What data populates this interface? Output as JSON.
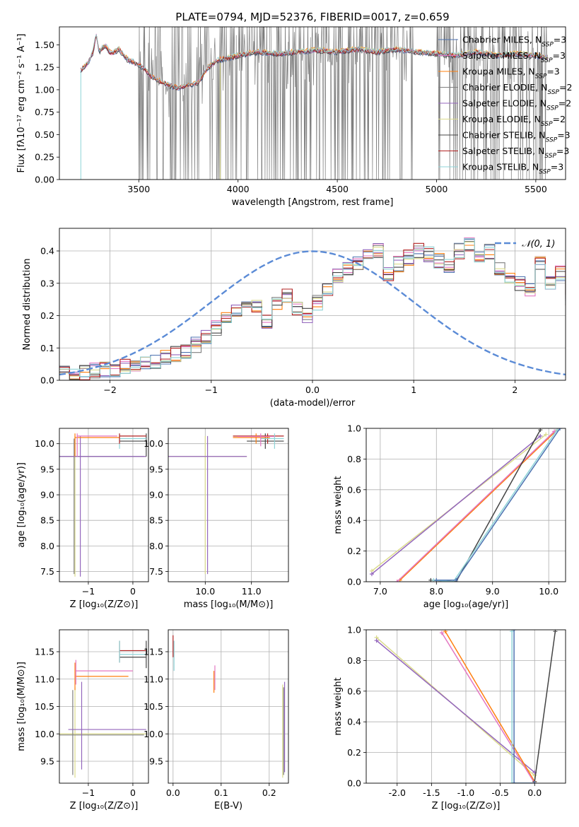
{
  "colors": {
    "chabrier_miles": "#4c72b0",
    "salpeter_miles": "#e377c2",
    "kroupa_miles": "#ff7f0e",
    "chabrier_elodie": "#7f7f7f",
    "salpeter_elodie": "#9467bd",
    "kroupa_elodie": "#dbdb8d",
    "chabrier_stelib": "#444444",
    "salpeter_stelib": "#b22222",
    "kroupa_stelib": "#8fd4d8",
    "normal": "#5b8bd6",
    "grid": "#b0b0b0"
  },
  "chart_data": [
    {
      "id": "spectrum",
      "type": "line",
      "title": "PLATE=0794, MJD=52376, FIBERID=0017, z=0.659",
      "xlabel": "wavelength [Angstrom, rest frame]",
      "ylabel": "Flux [fλ10⁻¹⁷ erg cm⁻² s⁻¹ A⁻¹]",
      "xlim": [
        3100,
        5650
      ],
      "ylim": [
        0,
        1.7
      ],
      "xticks": [
        3500,
        4000,
        4500,
        5000,
        5500
      ],
      "yticks": [
        0.0,
        0.25,
        0.5,
        0.75,
        1.0,
        1.25,
        1.5
      ],
      "grid": false,
      "legend_position": "top-right",
      "legend": [
        {
          "pre": "Chabrier MILES, N",
          "sub": "SSP",
          "post": "=3",
          "color": "#4c72b0"
        },
        {
          "pre": "Salpeter MILES, N",
          "sub": "SSP",
          "post": "=3",
          "color": "#e377c2"
        },
        {
          "pre": "Kroupa MILES, N",
          "sub": "SSP",
          "post": "=3",
          "color": "#ff7f0e"
        },
        {
          "pre": "Chabrier ELODIE, N",
          "sub": "SSP",
          "post": "=2",
          "color": "#7f7f7f"
        },
        {
          "pre": "Salpeter ELODIE, N",
          "sub": "SSP",
          "post": "=2",
          "color": "#9467bd"
        },
        {
          "pre": "Kroupa ELODIE, N",
          "sub": "SSP",
          "post": "=2",
          "color": "#dbdb8d"
        },
        {
          "pre": "Chabrier STELIB, N",
          "sub": "SSP",
          "post": "=3",
          "color": "#444444"
        },
        {
          "pre": "Salpeter STELIB, N",
          "sub": "SSP",
          "post": "=3",
          "color": "#b22222"
        },
        {
          "pre": "Kroupa STELIB, N",
          "sub": "SSP",
          "post": "=3",
          "color": "#8fd4d8"
        }
      ],
      "continuum": [
        [
          3210,
          1.22
        ],
        [
          3240,
          1.28
        ],
        [
          3270,
          1.42
        ],
        [
          3285,
          1.62
        ],
        [
          3300,
          1.42
        ],
        [
          3330,
          1.5
        ],
        [
          3360,
          1.4
        ],
        [
          3400,
          1.45
        ],
        [
          3440,
          1.34
        ],
        [
          3480,
          1.3
        ],
        [
          3520,
          1.25
        ],
        [
          3560,
          1.15
        ],
        [
          3600,
          1.1
        ],
        [
          3650,
          1.05
        ],
        [
          3700,
          1.02
        ],
        [
          3750,
          1.05
        ],
        [
          3800,
          1.08
        ],
        [
          3850,
          1.25
        ],
        [
          3900,
          1.33
        ],
        [
          4000,
          1.38
        ],
        [
          4100,
          1.42
        ],
        [
          4200,
          1.4
        ],
        [
          4300,
          1.42
        ],
        [
          4400,
          1.44
        ],
        [
          4500,
          1.42
        ],
        [
          4600,
          1.45
        ],
        [
          4700,
          1.42
        ],
        [
          4800,
          1.45
        ],
        [
          4900,
          1.42
        ],
        [
          5000,
          1.4
        ],
        [
          5100,
          1.38
        ],
        [
          5200,
          1.42
        ],
        [
          5300,
          1.38
        ],
        [
          5400,
          1.4
        ],
        [
          5500,
          1.38
        ],
        [
          5550,
          1.36
        ]
      ],
      "noise_range": [
        3500,
        4880
      ],
      "noise_regions": [
        [
          3500,
          4880
        ],
        [
          5000,
          5560
        ]
      ]
    },
    {
      "id": "residuals",
      "type": "line",
      "title": "",
      "xlabel": "(data-model)/error",
      "ylabel": "Normed distribution",
      "xlim": [
        -2.5,
        2.5
      ],
      "ylim": [
        0,
        0.47
      ],
      "xticks": [
        -2,
        -1,
        0,
        1,
        2
      ],
      "yticks": [
        0.0,
        0.1,
        0.2,
        0.3,
        0.4
      ],
      "grid": true,
      "legend_position": "top-right",
      "legend_label": "𝒩(0, 1)",
      "bin_width": 0.1,
      "hist_base": [
        0.02,
        0.022,
        0.025,
        0.03,
        0.035,
        0.03,
        0.045,
        0.04,
        0.055,
        0.06,
        0.07,
        0.08,
        0.09,
        0.11,
        0.13,
        0.16,
        0.19,
        0.22,
        0.25,
        0.23,
        0.18,
        0.24,
        0.26,
        0.22,
        0.2,
        0.24,
        0.28,
        0.32,
        0.34,
        0.36,
        0.38,
        0.4,
        0.33,
        0.36,
        0.38,
        0.4,
        0.39,
        0.37,
        0.35,
        0.4,
        0.42,
        0.38,
        0.4,
        0.34,
        0.32,
        0.3,
        0.28,
        0.36,
        0.3,
        0.33,
        0.25,
        0.3,
        0.34,
        0.28,
        0.26,
        0.22,
        0.24,
        0.2,
        0.18,
        0.16,
        0.15,
        0.12,
        0.13,
        0.11,
        0.1,
        0.09,
        0.08,
        0.1,
        0.08,
        0.07,
        0.06,
        0.05,
        0.04,
        0.07,
        0.06,
        0.05,
        0.05,
        0.04,
        0.07,
        0.05
      ]
    },
    {
      "id": "age-vs-metallicity",
      "type": "scatter",
      "title": "",
      "xlabel": "Z [log₁₀(Z/Z⊙)]",
      "ylabel": "age  [log₁₀(age/yr)]",
      "xlim": [
        -1.65,
        0.35
      ],
      "ylim": [
        7.3,
        10.3
      ],
      "xticks": [
        -1,
        0
      ],
      "yticks": [
        7.5,
        8.0,
        8.5,
        9.0,
        9.5,
        10.0
      ],
      "grid": true
    },
    {
      "id": "age-vs-mass",
      "type": "scatter",
      "title": "",
      "xlabel": "mass [log₁₀(M/M⊙)]",
      "ylabel": "",
      "xlim": [
        9.2,
        11.8
      ],
      "ylim": [
        7.3,
        10.3
      ],
      "xticks": [
        10,
        11
      ],
      "yticks": [
        7.5,
        8.0,
        8.5,
        9.0,
        9.5,
        10.0
      ],
      "grid": true
    },
    {
      "id": "massweight-vs-age",
      "type": "line",
      "title": "",
      "xlabel": "age  [log₁₀(age/yr)]",
      "ylabel": "mass weight",
      "xlim": [
        6.75,
        10.3
      ],
      "ylim": [
        0,
        1.0
      ],
      "xticks": [
        7,
        8,
        9,
        10
      ],
      "yticks": [
        0.0,
        0.2,
        0.4,
        0.6,
        0.8,
        1.0
      ],
      "grid": true,
      "series": [
        {
          "color": "#dbdb8d",
          "points": [
            [
              6.85,
              0.07
            ],
            [
              9.95,
              0.96
            ]
          ]
        },
        {
          "color": "#9467bd",
          "points": [
            [
              6.85,
              0.05
            ],
            [
              9.85,
              0.95
            ]
          ]
        },
        {
          "color": "#ff7f0e",
          "points": [
            [
              7.35,
              0.01
            ],
            [
              10.15,
              0.99
            ]
          ]
        },
        {
          "color": "#e377c2",
          "points": [
            [
              7.3,
              0.0
            ],
            [
              10.1,
              0.98
            ]
          ]
        },
        {
          "color": "#444444",
          "points": [
            [
              7.9,
              0.01
            ],
            [
              8.35,
              0.0
            ],
            [
              9.85,
              0.99
            ]
          ]
        },
        {
          "color": "#8fd4d8",
          "points": [
            [
              7.95,
              0.01
            ],
            [
              8.3,
              0.0
            ],
            [
              10.15,
              0.99
            ]
          ]
        },
        {
          "color": "#4c72b0",
          "points": [
            [
              8.0,
              0.01
            ],
            [
              8.35,
              0.01
            ],
            [
              10.2,
              1.0
            ]
          ]
        }
      ]
    },
    {
      "id": "mass-vs-metallicity",
      "type": "scatter",
      "title": "",
      "xlabel": "Z [log₁₀(Z/Z⊙)]",
      "ylabel": "mass [log₁₀(M/M⊙)]",
      "xlim": [
        -1.65,
        0.35
      ],
      "ylim": [
        9.1,
        11.9
      ],
      "xticks": [
        -1,
        0
      ],
      "yticks": [
        9.5,
        10.0,
        10.5,
        11.0,
        11.5
      ],
      "grid": true
    },
    {
      "id": "mass-vs-ebv",
      "type": "scatter",
      "title": "",
      "xlabel": "E(B-V)",
      "ylabel": "",
      "xlim": [
        -0.01,
        0.24
      ],
      "ylim": [
        9.1,
        11.9
      ],
      "xticks": [
        0.0,
        0.1,
        0.2
      ],
      "yticks": [
        9.5,
        10.0,
        10.5,
        11.0,
        11.5
      ],
      "grid": true
    },
    {
      "id": "massweight-vs-metallicity",
      "type": "line",
      "title": "",
      "xlabel": "Z [log₁₀(Z/Z⊙)]",
      "ylabel": "mass weight",
      "xlim": [
        -2.45,
        0.45
      ],
      "ylim": [
        0,
        1.0
      ],
      "xticks": [
        -2.0,
        -1.5,
        -1.0,
        -0.5,
        0.0
      ],
      "yticks": [
        0.0,
        0.2,
        0.4,
        0.6,
        0.8,
        1.0
      ],
      "grid": true,
      "series": [
        {
          "color": "#dbdb8d",
          "points": [
            [
              -2.3,
              0.95
            ],
            [
              0.0,
              0.05
            ]
          ]
        },
        {
          "color": "#9467bd",
          "points": [
            [
              -2.3,
              0.93
            ],
            [
              0.0,
              0.07
            ]
          ]
        },
        {
          "color": "#ff7f0e",
          "points": [
            [
              -1.3,
              0.99
            ],
            [
              0.0,
              0.01
            ]
          ]
        },
        {
          "color": "#e377c2",
          "points": [
            [
              -1.35,
              0.98
            ],
            [
              0.0,
              0.0
            ]
          ]
        },
        {
          "color": "#444444",
          "points": [
            [
              0.3,
              0.99
            ],
            [
              0.0,
              0.01
            ]
          ]
        },
        {
          "color": "#8fd4d8",
          "points": [
            [
              -0.33,
              0.99
            ],
            [
              -0.33,
              0.0
            ],
            [
              0.0,
              0.0
            ]
          ]
        },
        {
          "color": "#4c72b0",
          "points": [
            [
              -0.3,
              1.0
            ],
            [
              -0.3,
              0.0
            ],
            [
              0.0,
              0.0
            ]
          ]
        }
      ]
    }
  ]
}
